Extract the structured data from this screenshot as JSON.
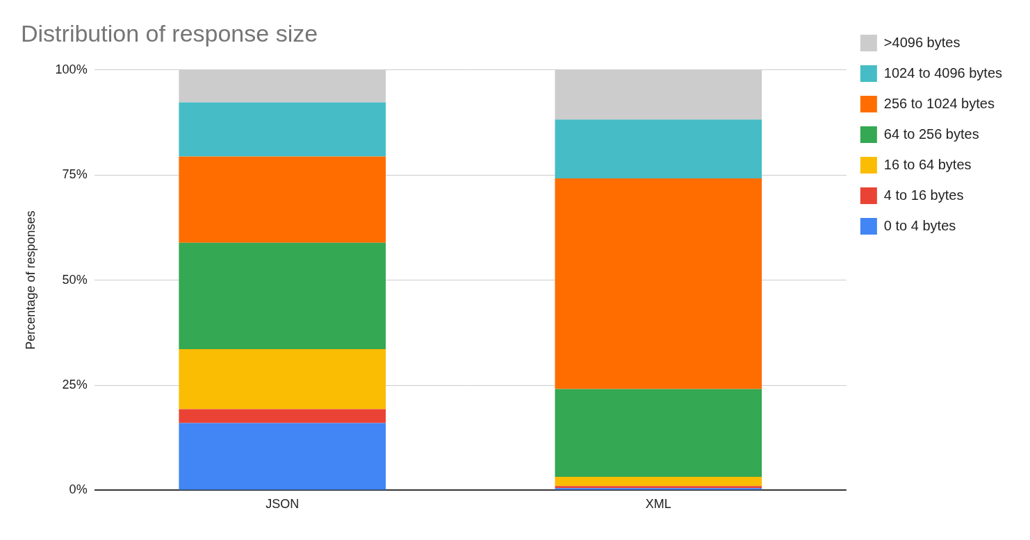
{
  "chart_data": {
    "type": "bar",
    "title": "Distribution of response size",
    "y_label": "Percentage of responses",
    "categories": [
      "JSON",
      "XML"
    ],
    "stacked": true,
    "grid": true,
    "legend": "right",
    "ylim": [
      0,
      100
    ],
    "yticks": [
      {
        "value": 0,
        "label": "0%"
      },
      {
        "value": 25,
        "label": "25%"
      },
      {
        "value": 50,
        "label": "50%"
      },
      {
        "value": 75,
        "label": "75%"
      },
      {
        "value": 100,
        "label": "100%"
      }
    ],
    "series": [
      {
        "name": "0 to 4 bytes",
        "color": "#4285f4",
        "values": [
          16.0,
          0.5
        ]
      },
      {
        "name": "4 to 16 bytes",
        "color": "#ea4335",
        "values": [
          3.3,
          0.5
        ]
      },
      {
        "name": "16 to 64 bytes",
        "color": "#fbbc04",
        "values": [
          14.3,
          2.2
        ]
      },
      {
        "name": "64 to 256 bytes",
        "color": "#34a853",
        "values": [
          25.3,
          20.9
        ]
      },
      {
        "name": "256 to 1024 bytes",
        "color": "#ff6d01",
        "values": [
          20.5,
          50.1
        ]
      },
      {
        "name": "1024 to 4096 bytes",
        "color": "#46bdc6",
        "values": [
          12.9,
          14.0
        ]
      },
      {
        "name": ">4096 bytes",
        "color": "#cccccc",
        "values": [
          7.7,
          11.8
        ]
      }
    ]
  }
}
